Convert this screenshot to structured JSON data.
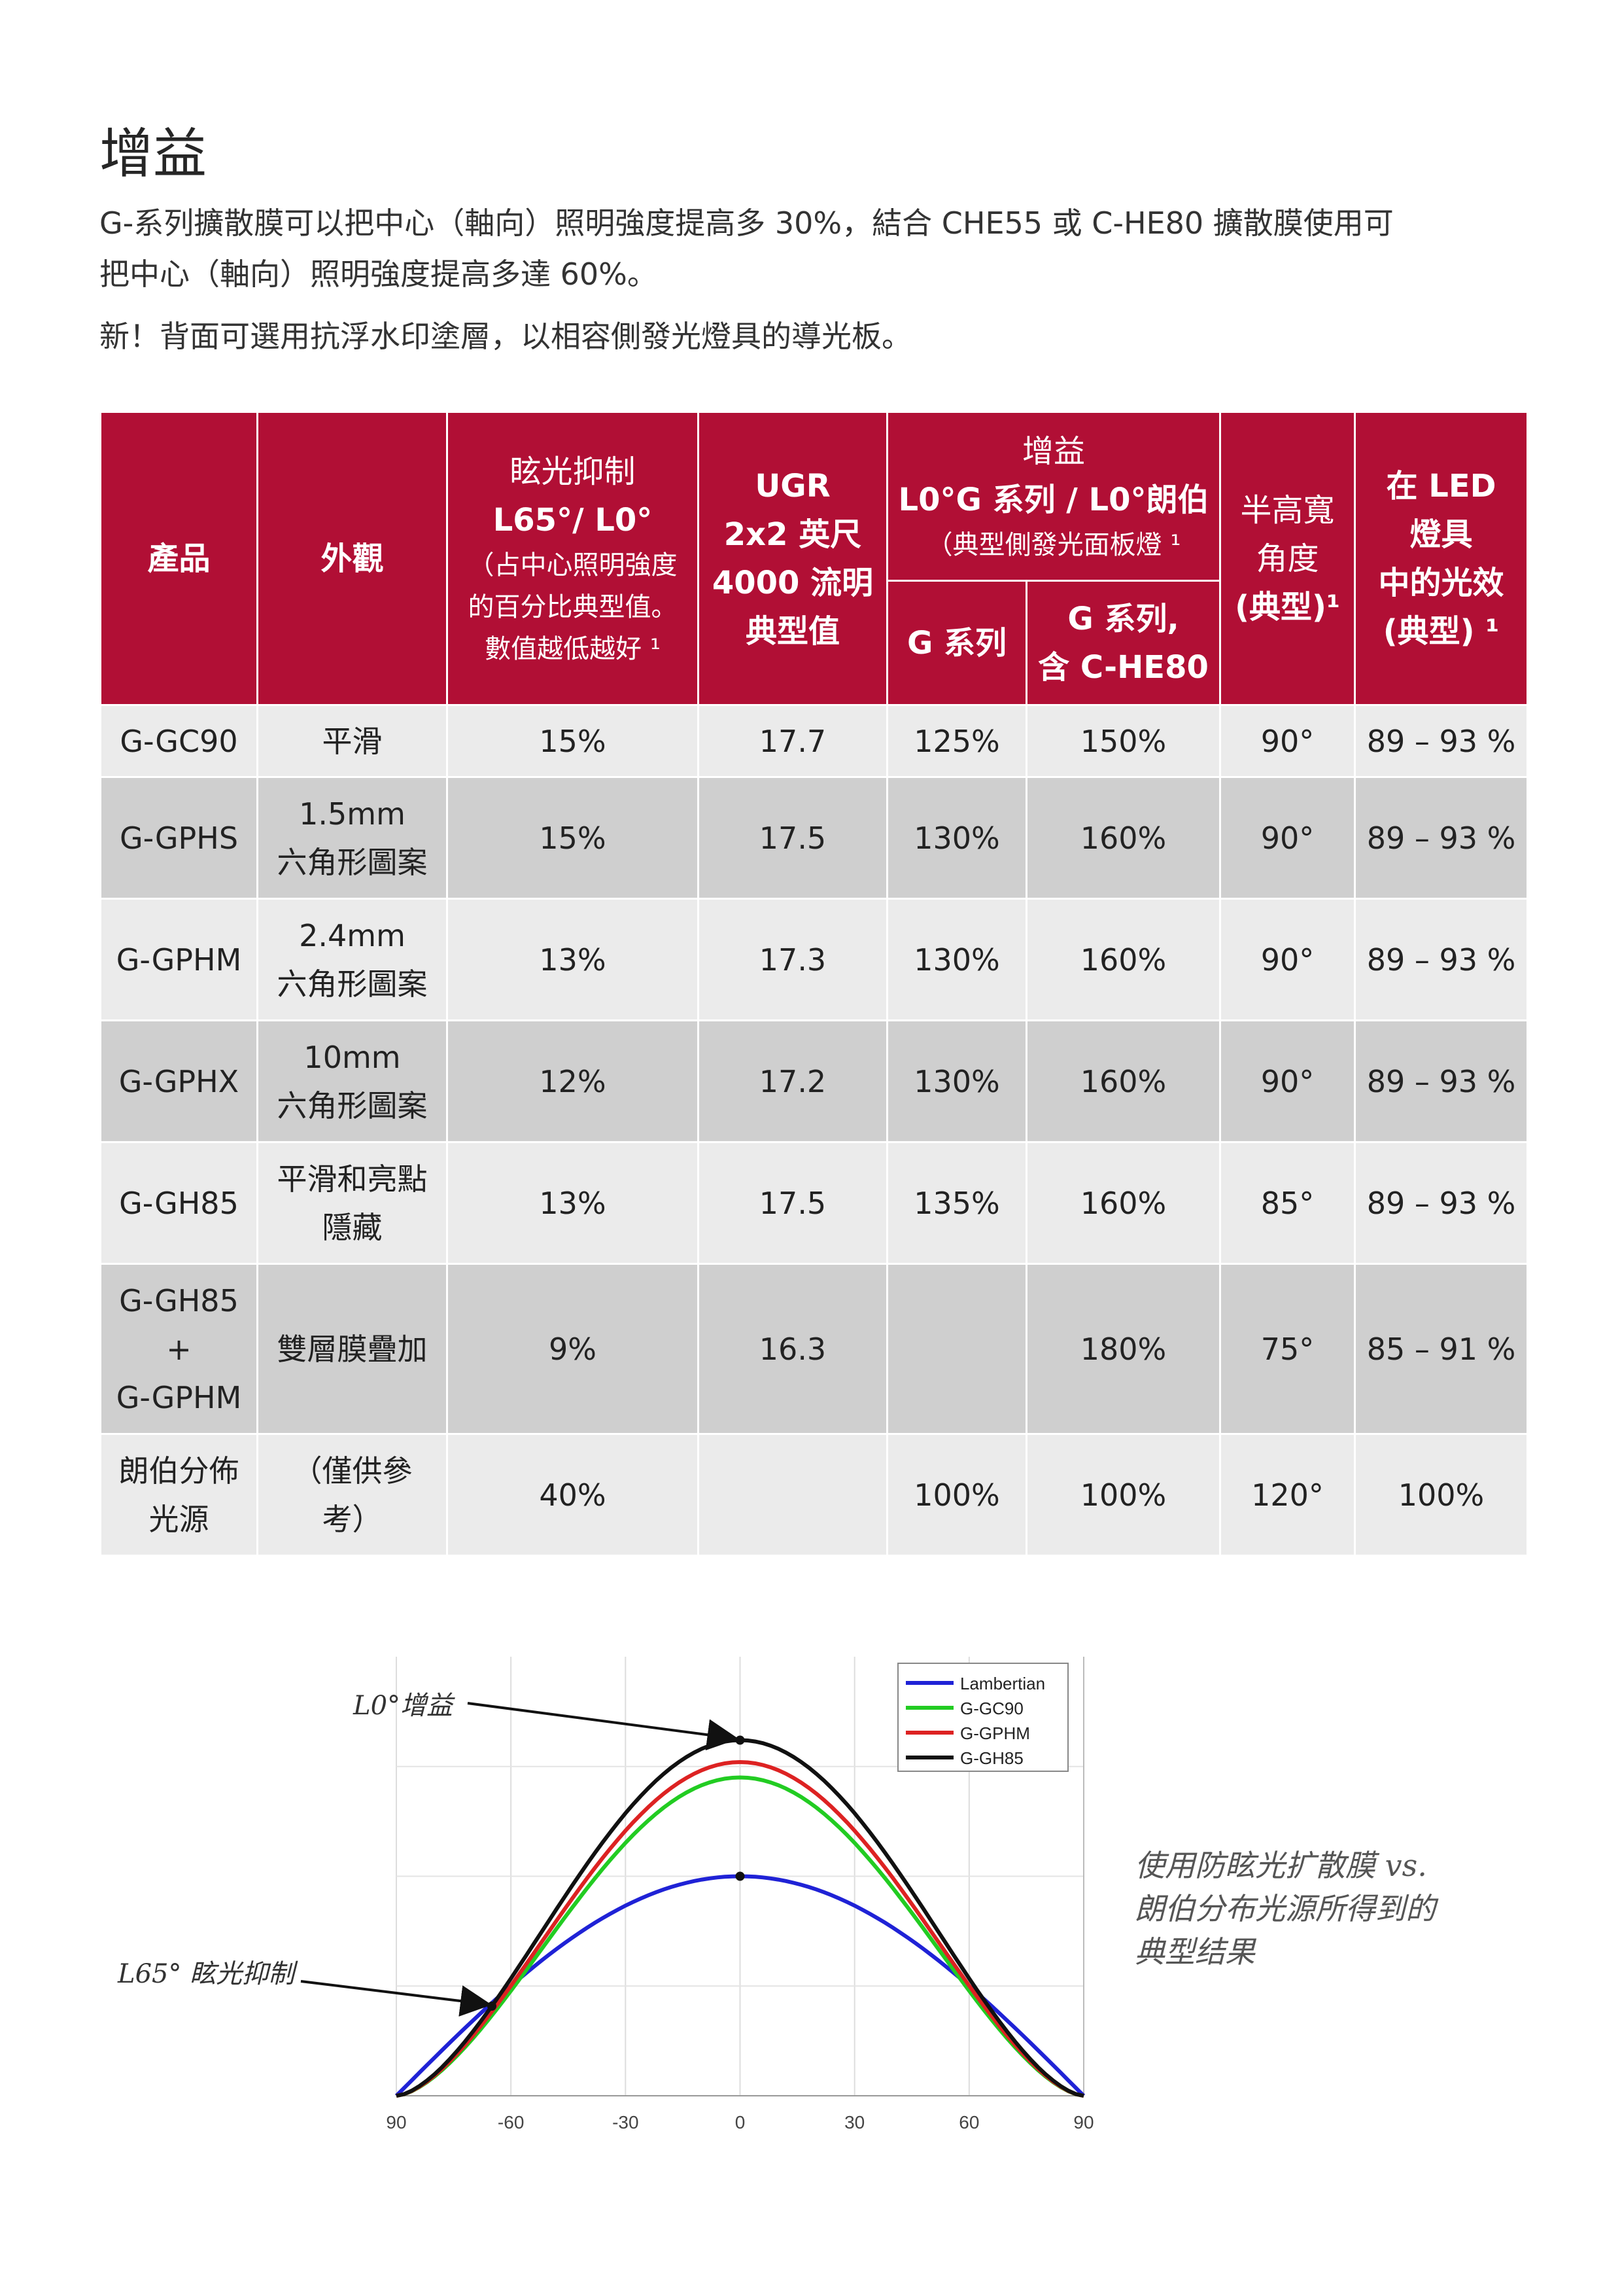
{
  "heading": "增益",
  "intro": {
    "line1": "G-系列擴散膜可以把中心（軸向）照明強度提高多 30%，結合 CHE55 或 C-HE80 擴散膜使用可",
    "line2": "把中心（軸向）照明強度提高多達 60%。",
    "line3": "新！背面可選用抗浮水印塗層，以相容側發光燈具的導光板。"
  },
  "table": {
    "headers": {
      "product": "產品",
      "appearance": "外觀",
      "glare": {
        "l1": "眩光抑制",
        "l2": "L65°/ L0°",
        "l3": "（占中心照明強度",
        "l4": "的百分比典型值。",
        "l5": "數值越低越好 ¹"
      },
      "ugr": {
        "l1": "UGR",
        "l2": "2x2 英尺",
        "l3": "4000 流明",
        "l4": "典型值"
      },
      "gain": {
        "l1": "增益",
        "l2": "L0°G 系列 / L0°朗伯",
        "l3": "（典型側發光面板燈 ¹"
      },
      "gain_g": "G 系列",
      "gain_che": {
        "l1": "G 系列,",
        "l2": "含 C-HE80"
      },
      "fwhm": {
        "l1": "半高寬",
        "l2": "角度",
        "l3": "(典型)¹"
      },
      "efficacy": {
        "l1": "在 LED",
        "l2": "燈具",
        "l3": "中的光效",
        "l4": "(典型) ¹"
      }
    },
    "rows": [
      {
        "product": [
          "G-GC90"
        ],
        "appearance": [
          "平滑"
        ],
        "glare": "15%",
        "ugr": "17.7",
        "gain_g": "125%",
        "gain_che": "150%",
        "fwhm": "90°",
        "efficacy": "89 – 93 %"
      },
      {
        "product": [
          "G-GPHS"
        ],
        "appearance": [
          "1.5mm",
          "六角形圖案"
        ],
        "glare": "15%",
        "ugr": "17.5",
        "gain_g": "130%",
        "gain_che": "160%",
        "fwhm": "90°",
        "efficacy": "89 – 93 %"
      },
      {
        "product": [
          "G-GPHM"
        ],
        "appearance": [
          "2.4mm",
          "六角形圖案"
        ],
        "glare": "13%",
        "ugr": "17.3",
        "gain_g": "130%",
        "gain_che": "160%",
        "fwhm": "90°",
        "efficacy": "89 – 93 %"
      },
      {
        "product": [
          "G-GPHX"
        ],
        "appearance": [
          "10mm",
          "六角形圖案"
        ],
        "glare": "12%",
        "ugr": "17.2",
        "gain_g": "130%",
        "gain_che": "160%",
        "fwhm": "90°",
        "efficacy": "89 – 93 %"
      },
      {
        "product": [
          "G-GH85"
        ],
        "appearance": [
          "平滑和亮點",
          "隱藏"
        ],
        "glare": "13%",
        "ugr": "17.5",
        "gain_g": "135%",
        "gain_che": "160%",
        "fwhm": "85°",
        "efficacy": "89 – 93 %"
      },
      {
        "product": [
          "G-GH85",
          "+",
          "G-GPHM"
        ],
        "appearance": [
          "雙層膜疊加"
        ],
        "glare": "9%",
        "ugr": "16.3",
        "gain_g": "",
        "gain_che": "180%",
        "fwhm": "75°",
        "efficacy": "85 – 91 %"
      },
      {
        "product": [
          "朗伯分佈",
          "光源"
        ],
        "appearance": [
          "（僅供參",
          "考）"
        ],
        "glare": "40%",
        "ugr": "",
        "gain_g": "100%",
        "gain_che": "100%",
        "fwhm": "120°",
        "efficacy": "100%"
      }
    ]
  },
  "chart_data": {
    "type": "line",
    "x_ticks": [
      "90",
      "-60",
      "-30",
      "0",
      "30",
      "60",
      "90"
    ],
    "xlim": [
      -90,
      90
    ],
    "ylim": [
      0,
      1.0
    ],
    "grid": true,
    "legend_position": "top-right",
    "series": [
      {
        "name": "Lambertian",
        "color": "#1f22d6",
        "peak": 0.5,
        "shape": "cosine"
      },
      {
        "name": "G-GC90",
        "color": "#22cc22",
        "peak": 0.725,
        "shape": "gain"
      },
      {
        "name": "G-GPHM",
        "color": "#dd2222",
        "peak": 0.76,
        "shape": "gain"
      },
      {
        "name": "G-GH85",
        "color": "#111111",
        "peak": 0.81,
        "shape": "gain"
      }
    ],
    "annotations": {
      "l0": "L0°增益",
      "l65": "L65° 眩光抑制"
    }
  },
  "caption": {
    "l1": "使用防眩光扩散膜 vs.",
    "l2": "朗伯分布光源所得到的",
    "l3": "典型结果"
  }
}
